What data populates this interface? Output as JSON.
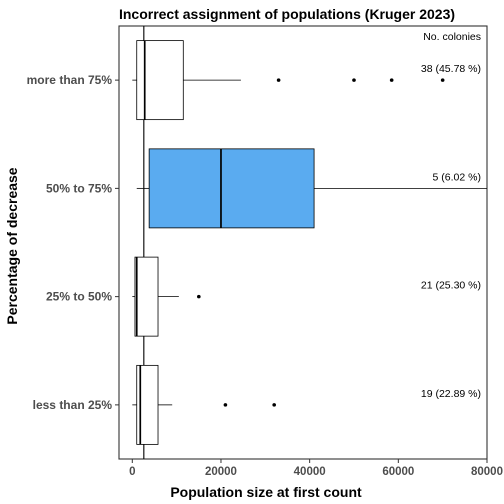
{
  "chart_data": {
    "type": "boxplot",
    "orientation": "horizontal",
    "title": "Incorrect assignment of populations (Kruger 2023)",
    "xlabel": "Population size at first count",
    "ylabel": "Percentage of decrease",
    "xlim": [
      -3000,
      80000
    ],
    "x_ticks": [
      0,
      20000,
      40000,
      60000,
      80000
    ],
    "reference_line_x": 2600,
    "legend_header": "No. colonies",
    "grid": false,
    "categories": [
      "more than 75%",
      "50% to 75%",
      "25% to 50%",
      "less than 25%"
    ],
    "series": [
      {
        "category": "more than 75%",
        "whisker_low": 0,
        "q1": 1000,
        "median": 2800,
        "q3": 11500,
        "whisker_high": 24500,
        "outliers": [
          33000,
          50000,
          58500,
          70000
        ],
        "fill": "#ffffff",
        "label": "38 (45.78 %)"
      },
      {
        "category": "50% to 75%",
        "whisker_low": 1000,
        "q1": 3800,
        "median": 20000,
        "q3": 41000,
        "whisker_high": 80000,
        "outliers": [],
        "fill": "#5aabf0",
        "label": "5 (6.02 %)"
      },
      {
        "category": "25% to 50%",
        "whisker_low": 0,
        "q1": 600,
        "median": 1000,
        "q3": 5800,
        "whisker_high": 10500,
        "outliers": [
          15000
        ],
        "fill": "#ffffff",
        "label": "21 (25.30 %)"
      },
      {
        "category": "less than 25%",
        "whisker_low": 0,
        "q1": 1000,
        "median": 1800,
        "q3": 5800,
        "whisker_high": 9000,
        "outliers": [
          21000,
          32000
        ],
        "fill": "#ffffff",
        "label": "19 (22.89 %)"
      }
    ]
  }
}
